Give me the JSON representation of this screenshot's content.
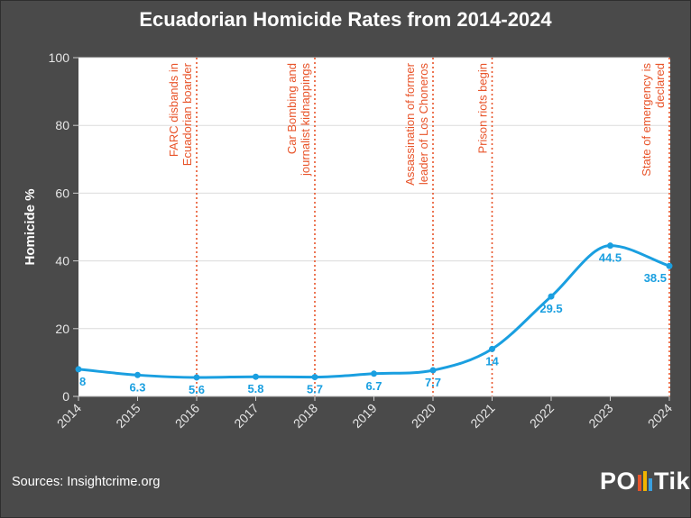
{
  "title": "Ecuadorian Homicide Rates from 2014-2024",
  "sources": "Sources: Insightcrime.org",
  "logo": {
    "text_left": "PO",
    "text_right": "Tik",
    "bar_colors": [
      "#e8542a",
      "#f2b400",
      "#3aa0e0"
    ]
  },
  "colors": {
    "line": "#1a9fe0",
    "annotation": "#e8542a",
    "axis_text": "#ffffff",
    "tick_text": "#e6e6e6",
    "plot_bg": "#ffffff",
    "grid": "#dcdcdc"
  },
  "chart_data": {
    "type": "line",
    "ylabel": "Homicide %",
    "xlabel": "",
    "ylim": [
      0,
      100
    ],
    "yticks": [
      0,
      20,
      40,
      60,
      80,
      100
    ],
    "x": [
      2014,
      2015,
      2016,
      2017,
      2018,
      2019,
      2020,
      2021,
      2022,
      2023,
      2024
    ],
    "x_tick_labels": [
      "2014",
      "2015",
      "2016",
      "2017",
      "2018",
      "2019",
      "2020",
      "2021",
      "2022",
      "2023",
      "2024"
    ],
    "values": [
      8,
      6.3,
      5.6,
      5.8,
      5.7,
      6.7,
      7.7,
      14,
      29.5,
      44.5,
      38.5
    ],
    "data_labels": [
      "8",
      "6.3",
      "5.6",
      "5.8",
      "5.7",
      "6.7",
      "7.7",
      "14",
      "29.5",
      "44.5",
      "38.5"
    ],
    "annotations": [
      {
        "x": 2016,
        "lines": [
          "FARC disbands in",
          "Ecuadorian boarder"
        ]
      },
      {
        "x": 2018,
        "lines": [
          "Car Bombing and",
          "journalist kidnappings"
        ]
      },
      {
        "x": 2020,
        "lines": [
          "Assassination of former",
          "leader of Los Choneros"
        ]
      },
      {
        "x": 2021,
        "lines": [
          "Prison riots begin"
        ]
      },
      {
        "x": 2024,
        "lines": [
          "State of emergency is",
          "declared"
        ]
      }
    ]
  }
}
